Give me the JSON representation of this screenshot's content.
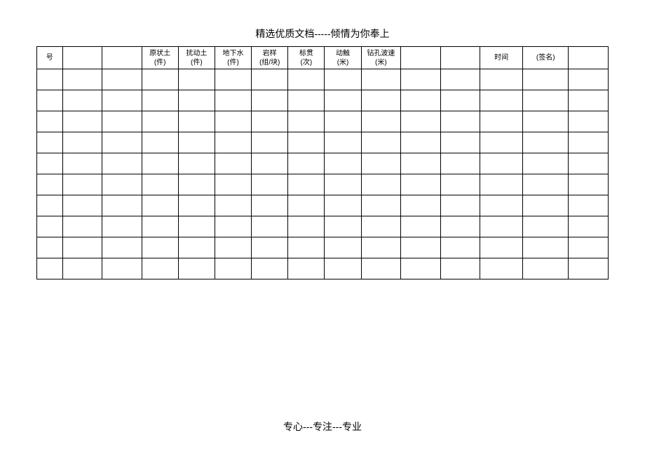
{
  "header": "精选优质文档-----倾情为你奉上",
  "footer": "专心---专注---专业",
  "table": {
    "columns": [
      {
        "line1": "号",
        "line2": ""
      },
      {
        "line1": "",
        "line2": ""
      },
      {
        "line1": "",
        "line2": ""
      },
      {
        "line1": "原状土",
        "line2": "(件)"
      },
      {
        "line1": "扰动土",
        "line2": "(件)"
      },
      {
        "line1": "地下水",
        "line2": "(件)"
      },
      {
        "line1": "岩样",
        "line2": "(组/块)"
      },
      {
        "line1": "标贯",
        "line2": "(次)"
      },
      {
        "line1": "动触",
        "line2": "(米)"
      },
      {
        "line1": "钻孔波速",
        "line2": "(米)"
      },
      {
        "line1": "",
        "line2": ""
      },
      {
        "line1": "",
        "line2": ""
      },
      {
        "line1": "时间",
        "line2": ""
      },
      {
        "line1": "(签名)",
        "line2": ""
      },
      {
        "line1": "",
        "line2": ""
      }
    ],
    "row_count": 10,
    "col_count": 15
  },
  "styling": {
    "background_color": "#ffffff",
    "border_color": "#000000",
    "text_color": "#000000",
    "header_fontsize": 14,
    "cell_fontsize": 10
  }
}
